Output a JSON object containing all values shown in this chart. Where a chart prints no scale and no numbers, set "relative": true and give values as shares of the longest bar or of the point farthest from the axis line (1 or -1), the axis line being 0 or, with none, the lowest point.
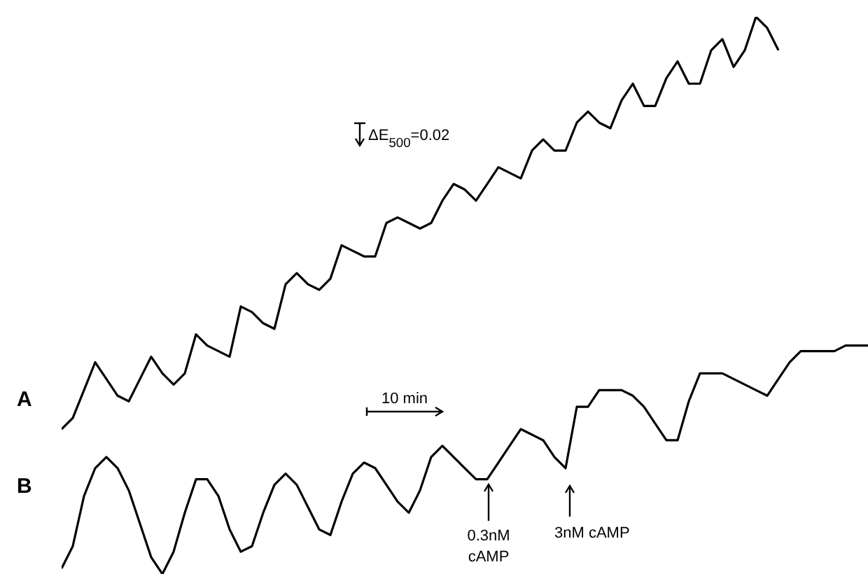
{
  "chart_data": {
    "type": "line",
    "relative": true,
    "tick_labels": false,
    "legend": false,
    "marker": "none",
    "line_style": "solid",
    "grid": false,
    "categories": [
      null,
      null,
      null,
      null,
      null,
      null,
      null,
      null,
      null,
      null,
      null,
      null,
      null,
      null,
      null,
      null,
      null,
      null,
      null,
      null,
      null,
      null,
      null,
      null,
      null,
      null,
      null,
      null,
      null,
      null,
      null,
      null,
      null,
      null,
      null,
      null,
      null,
      null,
      null,
      null,
      null,
      null,
      null,
      null,
      null,
      null,
      null,
      null,
      null,
      null,
      null,
      null,
      null,
      null,
      null,
      null,
      null,
      null,
      null,
      null,
      null,
      null,
      null,
      null,
      null,
      null,
      null,
      null,
      null,
      null,
      null,
      null,
      null
    ],
    "series": [
      {
        "name": "A",
        "color": "#000000",
        "values": [
          0.26,
          0.28,
          0.33,
          0.38,
          0.35,
          0.32,
          0.31,
          0.35,
          0.39,
          0.36,
          0.34,
          0.36,
          0.43,
          0.41,
          0.4,
          0.39,
          0.48,
          0.47,
          0.45,
          0.44,
          0.52,
          0.54,
          0.52,
          0.51,
          0.53,
          0.59,
          0.58,
          0.57,
          0.57,
          0.63,
          0.64,
          0.63,
          0.62,
          0.63,
          0.67,
          0.7,
          0.69,
          0.67,
          0.7,
          0.73,
          0.72,
          0.71,
          0.76,
          0.78,
          0.76,
          0.76,
          0.81,
          0.83,
          0.81,
          0.8,
          0.85,
          0.88,
          0.84,
          0.84,
          0.89,
          0.92,
          0.88,
          0.88,
          0.94,
          0.96,
          0.91,
          0.94,
          1,
          0.98,
          0.94,
          null,
          null,
          null,
          null,
          null,
          null,
          null,
          null
        ]
      },
      {
        "name": "B",
        "color": "#000000",
        "values": [
          0.01,
          0.05,
          0.14,
          0.19,
          0.21,
          0.19,
          0.15,
          0.09,
          0.03,
          0,
          0.04,
          0.11,
          0.17,
          0.17,
          0.14,
          0.08,
          0.04,
          0.05,
          0.11,
          0.16,
          0.18,
          0.16,
          0.12,
          0.08,
          0.07,
          0.13,
          0.18,
          0.2,
          0.19,
          0.16,
          0.13,
          0.11,
          0.15,
          0.21,
          0.23,
          0.21,
          0.19,
          0.17,
          0.17,
          0.2,
          0.23,
          0.26,
          0.25,
          0.24,
          0.21,
          0.19,
          0.3,
          0.3,
          0.33,
          0.33,
          0.33,
          0.32,
          0.3,
          0.27,
          0.24,
          0.24,
          0.31,
          0.36,
          0.36,
          0.36,
          0.35,
          0.34,
          0.33,
          0.32,
          0.35,
          0.38,
          0.4,
          0.4,
          0.4,
          0.4,
          0.41,
          0.41,
          0.41
        ]
      }
    ],
    "annotations": [
      "ΔE$_{500}$=0.02",
      "10 min",
      "0.3nM cAMP",
      "3nM cAMP"
    ]
  }
}
